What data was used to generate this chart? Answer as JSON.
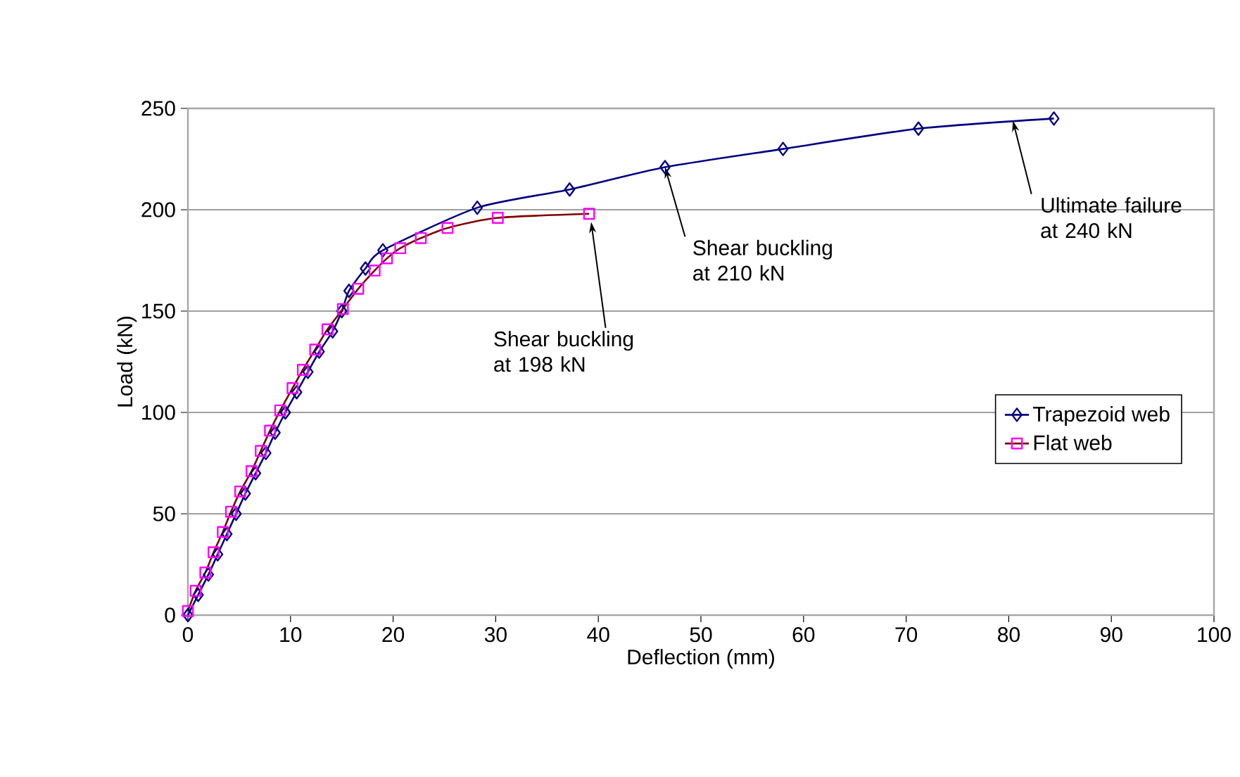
{
  "chart_data": {
    "type": "line",
    "xlabel": "Deflection (mm)",
    "ylabel": "Load (kN)",
    "xlim": [
      0,
      100
    ],
    "xticks": [
      0,
      10,
      20,
      30,
      40,
      50,
      60,
      70,
      80,
      90,
      100
    ],
    "ylim": [
      0,
      250
    ],
    "yticks": [
      0,
      50,
      100,
      150,
      200,
      250
    ],
    "grid": "y",
    "legend": "right",
    "line_style": "solid",
    "series": [
      {
        "name": "Trapezoid web",
        "color": "#000080",
        "marker": "diamond",
        "x": [
          0,
          1,
          2,
          2.9,
          3.8,
          4.7,
          5.6,
          6.6,
          7.6,
          8.5,
          9.5,
          10.6,
          11.7,
          12.8,
          14.1,
          15.0,
          15.7,
          17.3,
          19.0,
          28.2,
          37.2,
          46.5,
          58.0,
          71.2,
          84.4
        ],
        "values": [
          0,
          10,
          20,
          30,
          40,
          50,
          60,
          70,
          80,
          90,
          100,
          110,
          120,
          130,
          140,
          150,
          160,
          171,
          180,
          201,
          210,
          221,
          230,
          240,
          245
        ]
      },
      {
        "name": "Flat web",
        "color": "#ff00ff",
        "marker": "square",
        "x": [
          0,
          0.75,
          1.7,
          2.5,
          3.4,
          4.2,
          5.1,
          6.2,
          7.1,
          8.0,
          9.0,
          10.2,
          11.2,
          12.4,
          13.6,
          15.1,
          16.6,
          18.2,
          19.4,
          20.7,
          22.7,
          25.3,
          30.2,
          39.1
        ],
        "values": [
          2,
          12,
          21,
          31,
          41,
          51,
          61,
          71,
          81,
          91,
          101,
          112,
          121,
          131,
          141,
          151,
          161,
          170,
          176,
          181,
          186,
          191,
          196,
          198
        ]
      }
    ],
    "annotations": [
      {
        "text": "Shear buckling at 198 kN",
        "x": 39.3,
        "y": 194
      },
      {
        "text": "Shear buckling at 210 kN",
        "x": 46.5,
        "y": 221
      },
      {
        "text": "Ultimate failure at 240 kN",
        "x": 80.4,
        "y": 244
      }
    ]
  }
}
